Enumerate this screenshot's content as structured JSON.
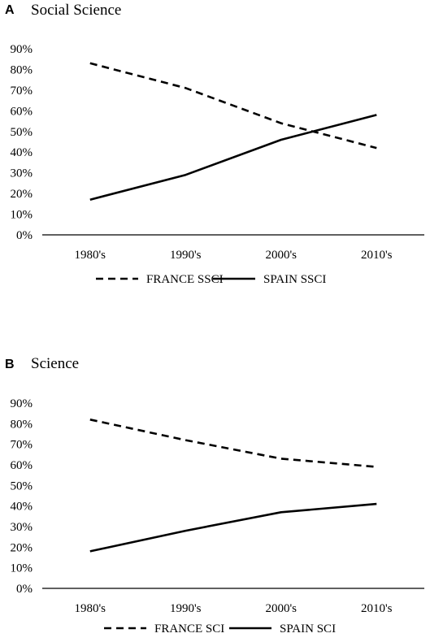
{
  "chart_data": [
    {
      "type": "line",
      "panel_label": "A",
      "title": "Social Science",
      "categories": [
        "1980's",
        "1990's",
        "2000's",
        "2010's"
      ],
      "y_ticks": [
        "0%",
        "10%",
        "20%",
        "30%",
        "40%",
        "50%",
        "60%",
        "70%",
        "80%",
        "90%"
      ],
      "ylim": [
        0,
        90
      ],
      "y_unit": "%",
      "grid": false,
      "legend_position": "bottom",
      "series": [
        {
          "name": "FRANCE SSCI",
          "values": [
            83,
            71,
            54,
            42
          ],
          "line_style": "dashed",
          "color": "#000000"
        },
        {
          "name": "SPAIN SSCI",
          "values": [
            17,
            29,
            46,
            58
          ],
          "line_style": "solid",
          "color": "#000000"
        }
      ]
    },
    {
      "type": "line",
      "panel_label": "B",
      "title": "Science",
      "categories": [
        "1980's",
        "1990's",
        "2000's",
        "2010's"
      ],
      "y_ticks": [
        "0%",
        "10%",
        "20%",
        "30%",
        "40%",
        "50%",
        "60%",
        "70%",
        "80%",
        "90%"
      ],
      "ylim": [
        0,
        90
      ],
      "y_unit": "%",
      "grid": false,
      "legend_position": "bottom",
      "series": [
        {
          "name": "FRANCE SCI",
          "values": [
            82,
            72,
            63,
            59
          ],
          "line_style": "dashed",
          "color": "#000000"
        },
        {
          "name": "SPAIN SCI",
          "values": [
            18,
            28,
            37,
            41
          ],
          "line_style": "solid",
          "color": "#000000"
        }
      ]
    }
  ]
}
